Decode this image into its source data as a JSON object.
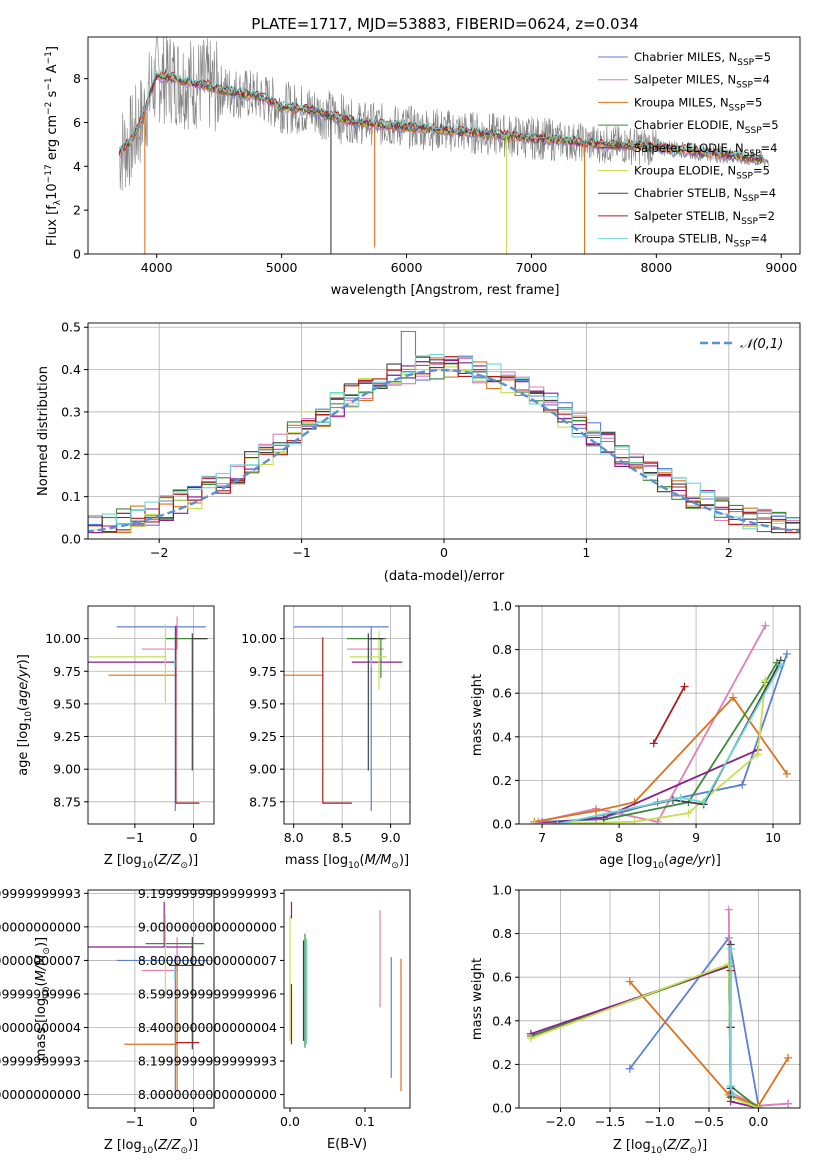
{
  "title": "PLATE=1717, MJD=53883, FIBERID=0624, z=0.034",
  "legend_series": [
    {
      "name": "Chabrier MILES, N",
      "sub": "SSP",
      "tail": "=5",
      "color": "#5b7fd6"
    },
    {
      "name": "Salpeter MILES, N",
      "sub": "SSP",
      "tail": "=4",
      "color": "#e07fb8"
    },
    {
      "name": "Kroupa MILES, N",
      "sub": "SSP",
      "tail": "=5",
      "color": "#d9731e"
    },
    {
      "name": "Chabrier ELODIE, N",
      "sub": "SSP",
      "tail": "=5",
      "color": "#3a8a3a"
    },
    {
      "name": "Salpeter ELODIE, N",
      "sub": "SSP",
      "tail": "=4",
      "color": "#8a1f8a"
    },
    {
      "name": "Kroupa ELODIE, N",
      "sub": "SSP",
      "tail": "=5",
      "color": "#c8de55"
    },
    {
      "name": "Chabrier STELIB, N",
      "sub": "SSP",
      "tail": "=4",
      "color": "#404040"
    },
    {
      "name": "Salpeter STELIB, N",
      "sub": "SSP",
      "tail": "=2",
      "color": "#b01c1c"
    },
    {
      "name": "Kroupa STELIB, N",
      "sub": "SSP",
      "tail": "=4",
      "color": "#6fd6d6"
    }
  ],
  "chart_data": [
    {
      "id": "spectrum",
      "type": "line",
      "xlabel": "wavelength [Angstrom, rest frame]",
      "ylabel_parts": [
        "Flux [f",
        "λ",
        "10",
        "−17",
        " erg cm",
        "−2",
        " s",
        "−1",
        " A",
        "−1",
        "]"
      ],
      "xlim": [
        3450,
        9150
      ],
      "ylim": [
        0,
        9.9
      ],
      "xticks": [
        4000,
        5000,
        6000,
        7000,
        8000,
        9000
      ],
      "yticks": [
        0,
        2,
        4,
        6,
        8
      ],
      "data_color": "#808080",
      "continuum": {
        "x": [
          3700,
          3800,
          3900,
          3950,
          4000,
          4100,
          4200,
          4300,
          4400,
          4500,
          4600,
          4700,
          4800,
          4900,
          5000,
          5200,
          5400,
          5600,
          5800,
          6000,
          6200,
          6400,
          6600,
          6800,
          7000,
          7200,
          7400,
          7600,
          7800,
          8000,
          8200,
          8400,
          8600,
          8800,
          8850
        ],
        "y": [
          4.6,
          5.2,
          6.4,
          7.4,
          8.1,
          8.1,
          7.9,
          7.8,
          7.7,
          7.5,
          7.4,
          7.3,
          7.2,
          7.0,
          6.7,
          6.6,
          6.3,
          6.0,
          5.9,
          5.8,
          5.7,
          5.6,
          5.5,
          5.4,
          5.3,
          5.2,
          5.1,
          5.0,
          4.95,
          4.9,
          4.75,
          4.6,
          4.5,
          4.35,
          4.3
        ]
      },
      "dips": [
        {
          "x": 3905,
          "y": 0.0,
          "color": "#d9731e"
        },
        {
          "x": 5395,
          "y": 0.0,
          "color": "#404040"
        },
        {
          "x": 5745,
          "y": 0.3,
          "color": "#d9731e"
        },
        {
          "x": 6800,
          "y": 0.0,
          "color": "#c8de55"
        },
        {
          "x": 7425,
          "y": 0.0,
          "color": "#d9731e"
        }
      ]
    },
    {
      "id": "residuals",
      "type": "step",
      "xlabel": "(data-model)/error",
      "ylabel": "Normed distribution",
      "xlim": [
        -2.5,
        2.5
      ],
      "ylim": [
        0,
        0.51
      ],
      "xticks": [
        -2,
        -1,
        0,
        1,
        2
      ],
      "yticks": [
        0.0,
        0.1,
        0.2,
        0.3,
        0.4,
        0.5
      ],
      "bin_width": 0.1,
      "reference": {
        "label": "𝒩(0,1)",
        "mean": 0,
        "sigma": 1,
        "color": "#5b8fd6"
      },
      "highlight_bins": [
        {
          "x": -0.2,
          "y": 0.49,
          "color": "#5b7fd6"
        }
      ]
    },
    {
      "id": "age_vs_Z",
      "type": "errorbar",
      "xlabel": "Z [log",
      "xlabel_sub": "10",
      "xlabel_tail": "(Z/Z",
      "ylabel": "age  [log",
      "xlim": [
        -1.8,
        0.35
      ],
      "ylim": [
        8.58,
        10.25
      ],
      "xticks": [
        -1,
        0
      ],
      "yticks": [
        8.75,
        9.0,
        9.25,
        9.5,
        9.75,
        10.0
      ],
      "points": [
        {
          "x": -0.31,
          "y": 10.09,
          "xerr": [
            1.0,
            0.52
          ],
          "yerr": [
            1.41,
            0
          ],
          "color": "#5b7fd6"
        },
        {
          "x": -0.28,
          "y": 9.92,
          "xerr": [
            0.6,
            0
          ],
          "yerr": [
            0,
            0.25
          ],
          "color": "#e07fb8"
        },
        {
          "x": -0.28,
          "y": 9.72,
          "xerr": [
            1.17,
            0
          ],
          "yerr": [
            0,
            0
          ],
          "color": "#d9731e"
        },
        {
          "x": -0.02,
          "y": 10.0,
          "xerr": [
            0.45,
            0.26
          ],
          "yerr": [
            0,
            0
          ],
          "color": "#3a8a3a"
        },
        {
          "x": -0.3,
          "y": 9.82,
          "xerr": [
            1.5,
            0
          ],
          "yerr": [
            0,
            0.28
          ],
          "color": "#8a1f8a"
        },
        {
          "x": -0.48,
          "y": 9.86,
          "xerr": [
            1.3,
            0
          ],
          "yerr": [
            0.35,
            0.25
          ],
          "color": "#c8de55"
        },
        {
          "x": -0.02,
          "y": 10.0,
          "xerr": [
            0.0,
            0.26
          ],
          "yerr": [
            1.01,
            0.04
          ],
          "color": "#404040"
        },
        {
          "x": -0.3,
          "y": 8.74,
          "xerr": [
            0.0,
            0.4
          ],
          "yerr": [
            0,
            1.27
          ],
          "color": "#b01c1c"
        },
        {
          "x": -0.32,
          "y": 9.84,
          "xerr": [
            0,
            0
          ],
          "yerr": [
            0.06,
            0
          ],
          "color": "#6fd6d6"
        }
      ]
    },
    {
      "id": "age_vs_mass",
      "type": "errorbar",
      "xlabel": "mass [log",
      "ylabel": "",
      "xlim": [
        7.9,
        9.2
      ],
      "ylim": [
        8.58,
        10.25
      ],
      "xticks": [
        8.0,
        8.5,
        9.0
      ],
      "yticks": [
        8.75,
        9.0,
        9.25,
        9.5,
        9.75,
        10.0
      ],
      "points": [
        {
          "x": 8.8,
          "y": 10.09,
          "xerr": [
            0.8,
            0.18
          ],
          "yerr": [
            1.41,
            0
          ],
          "color": "#5b7fd6"
        },
        {
          "x": 8.75,
          "y": 9.92,
          "xerr": [
            0.2,
            0.18
          ],
          "yerr": [
            0,
            0
          ],
          "color": "#e07fb8"
        },
        {
          "x": 8.3,
          "y": 9.72,
          "xerr": [
            0.5,
            0
          ],
          "yerr": [
            0,
            0
          ],
          "color": "#d9731e"
        },
        {
          "x": 8.9,
          "y": 10.0,
          "xerr": [
            0.35,
            0.05
          ],
          "yerr": [
            0.3,
            0
          ],
          "color": "#3a8a3a"
        },
        {
          "x": 8.8,
          "y": 9.82,
          "xerr": [
            0.2,
            0.32
          ],
          "yerr": [
            0,
            0
          ],
          "color": "#8a1f8a"
        },
        {
          "x": 8.88,
          "y": 9.86,
          "xerr": [
            0.3,
            0.08
          ],
          "yerr": [
            0.25,
            0.2
          ],
          "color": "#c8de55"
        },
        {
          "x": 8.77,
          "y": 10.0,
          "xerr": [
            0.0,
            0.16
          ],
          "yerr": [
            1.01,
            0.04
          ],
          "color": "#404040"
        },
        {
          "x": 8.3,
          "y": 8.74,
          "xerr": [
            0.0,
            0.3
          ],
          "yerr": [
            0,
            1.27
          ],
          "color": "#b01c1c"
        },
        {
          "x": 8.8,
          "y": 9.84,
          "xerr": [
            0,
            0
          ],
          "yerr": [
            0.06,
            0
          ],
          "color": "#6fd6d6"
        }
      ]
    },
    {
      "id": "weight_vs_age",
      "type": "line",
      "xlabel": "age  [log",
      "ylabel": "mass weight",
      "xlim": [
        6.7,
        10.35
      ],
      "ylim": [
        0,
        1.0
      ],
      "xticks": [
        7,
        8,
        9,
        10
      ],
      "yticks": [
        0.0,
        0.2,
        0.4,
        0.6,
        0.8,
        1.0
      ],
      "series": [
        {
          "color": "#5b7fd6",
          "x": [
            7.0,
            7.7,
            8.5,
            9.6,
            10.18
          ],
          "y": [
            0.01,
            0.02,
            0.1,
            0.18,
            0.78
          ]
        },
        {
          "color": "#e07fb8",
          "x": [
            6.95,
            7.7,
            8.5,
            9.9
          ],
          "y": [
            0.01,
            0.07,
            0.01,
            0.91
          ]
        },
        {
          "color": "#d9731e",
          "x": [
            6.9,
            7.7,
            8.2,
            9.48,
            10.18
          ],
          "y": [
            0.01,
            0.06,
            0.1,
            0.58,
            0.23
          ]
        },
        {
          "color": "#3a8a3a",
          "x": [
            7.8,
            8.9,
            9.9,
            10.05
          ],
          "y": [
            0.02,
            0.1,
            0.65,
            0.74
          ]
        },
        {
          "color": "#8a1f8a",
          "x": [
            6.9,
            7.8,
            9.8
          ],
          "y": [
            0.0,
            0.03,
            0.34
          ]
        },
        {
          "color": "#c8de55",
          "x": [
            6.9,
            8.2,
            8.9,
            9.8,
            9.9
          ],
          "y": [
            0.0,
            0.01,
            0.05,
            0.32,
            0.66
          ]
        },
        {
          "color": "#404040",
          "x": [
            7.2,
            8.7,
            9.1,
            10.1
          ],
          "y": [
            0.0,
            0.11,
            0.09,
            0.75
          ]
        },
        {
          "color": "#b01c1c",
          "x": [
            8.45,
            8.85
          ],
          "y": [
            0.37,
            0.63
          ]
        },
        {
          "color": "#6fd6d6",
          "x": [
            7.2,
            8.8,
            9.1,
            10.1
          ],
          "y": [
            0.0,
            0.12,
            0.1,
            0.73
          ]
        }
      ]
    },
    {
      "id": "mass_vs_Z",
      "type": "errorbar",
      "xlabel": "Z [log",
      "ylabel": "mass [log",
      "xlim": [
        -1.8,
        0.35
      ],
      "ylim": [
        7.92,
        9.22
      ],
      "xticks": [
        -1,
        0
      ],
      "yticks": [
        8.0,
        8.2,
        8.4,
        8.6,
        8.8,
        9.0,
        9.2
      ],
      "points": [
        {
          "x": -0.31,
          "y": 8.8,
          "xerr": [
            1.0,
            0.55
          ],
          "yerr": [
            0.82,
            0.03
          ],
          "color": "#5b7fd6"
        },
        {
          "x": -0.28,
          "y": 8.74,
          "xerr": [
            0.6,
            0
          ],
          "yerr": [
            0,
            0.2
          ],
          "color": "#e07fb8"
        },
        {
          "x": -0.28,
          "y": 8.3,
          "xerr": [
            0.9,
            0
          ],
          "yerr": [
            0.28,
            0.5
          ],
          "color": "#d9731e"
        },
        {
          "x": -0.02,
          "y": 8.9,
          "xerr": [
            0.8,
            0.2
          ],
          "yerr": [
            0,
            0
          ],
          "color": "#3a8a3a"
        },
        {
          "x": -0.5,
          "y": 8.88,
          "xerr": [
            1.3,
            0.5
          ],
          "yerr": [
            0,
            0.27
          ],
          "color": "#8a1f8a"
        },
        {
          "x": -0.48,
          "y": 8.88,
          "xerr": [
            0,
            0
          ],
          "yerr": [
            0.3,
            0.2
          ],
          "color": "#c8de55"
        },
        {
          "x": -0.02,
          "y": 8.77,
          "xerr": [
            0.4,
            0.2
          ],
          "yerr": [
            0.5,
            0.17
          ],
          "color": "#404040"
        },
        {
          "x": -0.3,
          "y": 8.31,
          "xerr": [
            0,
            0.4
          ],
          "yerr": [
            0,
            0
          ],
          "color": "#b01c1c"
        },
        {
          "x": -0.32,
          "y": 8.75,
          "xerr": [
            0,
            0
          ],
          "yerr": [
            0.06,
            0
          ],
          "color": "#6fd6d6"
        }
      ]
    },
    {
      "id": "mass_vs_EBV",
      "type": "errorbar",
      "xlabel": "E(B-V)",
      "ylabel": "",
      "xlim": [
        -0.008,
        0.16
      ],
      "ylim": [
        7.92,
        9.22
      ],
      "xticks": [
        0.0,
        0.1
      ],
      "yticks": [
        8.0,
        8.2,
        8.4,
        8.6,
        8.8,
        9.0,
        9.2
      ],
      "points": [
        {
          "x": 0.135,
          "y": 8.5,
          "yerr": [
            0.4,
            0.32
          ],
          "color": "#5b7fd6"
        },
        {
          "x": 0.12,
          "y": 8.8,
          "yerr": [
            0.28,
            0.3
          ],
          "color": "#e07fb8"
        },
        {
          "x": 0.148,
          "y": 8.44,
          "yerr": [
            0.42,
            0.37
          ],
          "color": "#d9731e"
        },
        {
          "x": 0.02,
          "y": 8.62,
          "yerr": [
            0.34,
            0.34
          ],
          "color": "#3a8a3a"
        },
        {
          "x": 0.002,
          "y": 9.05,
          "yerr": [
            0,
            0.1
          ],
          "color": "#8a1f8a"
        },
        {
          "x": 0.0,
          "y": 8.62,
          "yerr": [
            0.3,
            0.45
          ],
          "color": "#c8de55"
        },
        {
          "x": 0.018,
          "y": 8.62,
          "yerr": [
            0.3,
            0.3
          ],
          "color": "#404040"
        },
        {
          "x": 0.002,
          "y": 8.48,
          "yerr": [
            0.18,
            0.18
          ],
          "color": "#b01c1c"
        },
        {
          "x": 0.022,
          "y": 8.6,
          "yerr": [
            0.3,
            0.33
          ],
          "color": "#6fd6d6"
        }
      ]
    },
    {
      "id": "weight_vs_Z",
      "type": "line",
      "xlabel": "Z [log",
      "ylabel": "mass weight",
      "xlim": [
        -2.42,
        0.42
      ],
      "ylim": [
        0,
        1.0
      ],
      "xticks": [
        -2.0,
        -1.5,
        -1.0,
        -0.5,
        0.0
      ],
      "yticks": [
        0.0,
        0.2,
        0.4,
        0.6,
        0.8,
        1.0
      ],
      "series": [
        {
          "color": "#5b7fd6",
          "x": [
            -1.3,
            -0.3,
            0.0,
            0.3
          ],
          "y": [
            0.18,
            0.78,
            0.01,
            0.02
          ]
        },
        {
          "color": "#e07fb8",
          "x": [
            -0.3,
            -0.28,
            0.0,
            0.3
          ],
          "y": [
            0.91,
            0.07,
            0.01,
            0.02
          ]
        },
        {
          "color": "#d9731e",
          "x": [
            -1.3,
            -0.3,
            0.0,
            0.3
          ],
          "y": [
            0.58,
            0.06,
            0.01,
            0.23
          ]
        },
        {
          "color": "#3a8a3a",
          "x": [
            -2.3,
            -0.3,
            -0.28,
            0.0
          ],
          "y": [
            0.33,
            0.65,
            0.1,
            0.0
          ]
        },
        {
          "color": "#8a1f8a",
          "x": [
            -2.3,
            -0.3,
            -0.28,
            0.0
          ],
          "y": [
            0.34,
            0.65,
            0.03,
            0.0
          ]
        },
        {
          "color": "#c8de55",
          "x": [
            -2.3,
            -0.3,
            -0.28,
            0.0
          ],
          "y": [
            0.32,
            0.66,
            0.05,
            0.0
          ]
        },
        {
          "color": "#404040",
          "x": [
            -0.28,
            -0.28,
            -0.28,
            -0.28
          ],
          "y": [
            0.75,
            0.37,
            0.09,
            0.05
          ]
        },
        {
          "color": "#b01c1c",
          "x": [
            -0.28,
            -0.28
          ],
          "y": [
            0.63,
            0.37
          ]
        },
        {
          "color": "#6fd6d6",
          "x": [
            -0.28,
            -0.28,
            -0.26
          ],
          "y": [
            0.73,
            0.1,
            0.06
          ]
        }
      ]
    }
  ]
}
